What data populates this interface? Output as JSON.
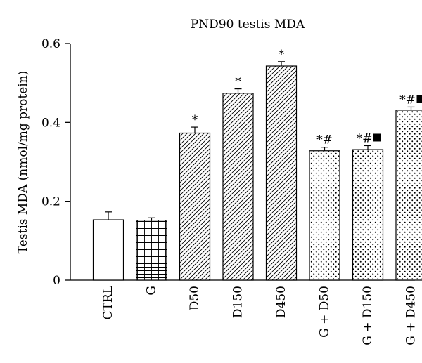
{
  "chart_data": {
    "type": "bar",
    "title": "PND90 testis MDA",
    "xlabel": "",
    "ylabel": "Testis MDA (nmol/mg protein)",
    "ylim": [
      0,
      0.6
    ],
    "yticks": [
      "0",
      "0.2",
      "0.4",
      "0.6"
    ],
    "ytick_values": [
      0,
      0.2,
      0.4,
      0.6
    ],
    "grid": false,
    "legend": "none",
    "categories": [
      "CTRL",
      "G",
      "D50",
      "D150",
      "D450",
      "G + D50",
      "G + D150",
      "G + D450"
    ],
    "values": [
      0.153,
      0.152,
      0.373,
      0.474,
      0.543,
      0.328,
      0.331,
      0.431
    ],
    "errors": [
      0.02,
      0.006,
      0.015,
      0.011,
      0.011,
      0.009,
      0.01,
      0.008
    ],
    "patterns": [
      "open",
      "crosshatch",
      "diagonal",
      "diagonal",
      "diagonal",
      "dots",
      "dots",
      "dots"
    ],
    "significance": [
      "",
      "",
      "*",
      "*",
      "*",
      "*#",
      "*#",
      "*#"
    ],
    "significance_square": [
      false,
      false,
      false,
      false,
      false,
      false,
      true,
      true
    ]
  }
}
